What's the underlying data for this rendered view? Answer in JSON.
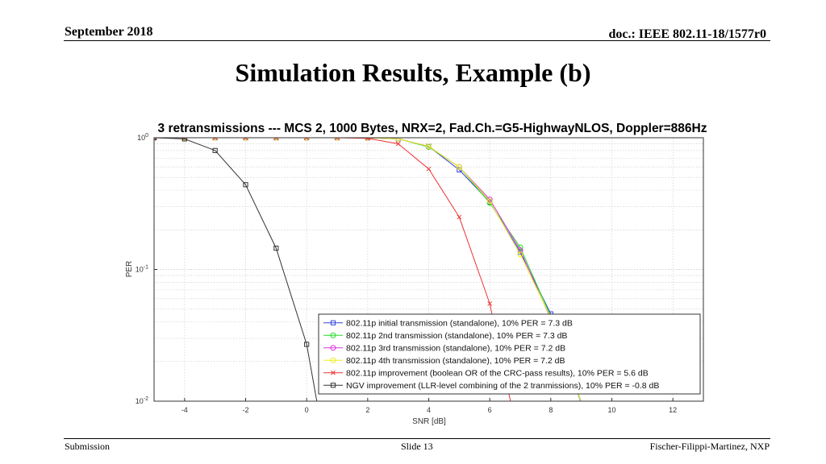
{
  "header": {
    "date": "September 2018",
    "doc_id": "doc.: IEEE 802.11-18/1577r0"
  },
  "slide": {
    "title": "Simulation Results, Example (b)"
  },
  "footer": {
    "left": "Submission",
    "center": "Slide 13",
    "right": "Fischer-Filippi-Martinez, NXP"
  },
  "chart_data": {
    "type": "line",
    "title": "3 retransmissions --- MCS 2, 1000 Bytes, NRX=2, Fad.Ch.=G5-HighwayNLOS, Doppler=886Hz",
    "xlabel": "SNR [dB]",
    "ylabel": "PER",
    "xlim": [
      -5,
      13
    ],
    "ylim": [
      0.01,
      1
    ],
    "y_scale": "log",
    "grid": true,
    "legend_position": "bottom-right",
    "x_ticks": [
      -4,
      -2,
      0,
      2,
      4,
      6,
      8,
      10,
      12
    ],
    "y_ticks": [
      {
        "value": 1,
        "base": "10",
        "exp": "0"
      },
      {
        "value": 0.1,
        "base": "10",
        "exp": "-1"
      },
      {
        "value": 0.01,
        "base": "10",
        "exp": "-2"
      }
    ],
    "series": [
      {
        "name": "802.11p initial transmission (standalone), 10% PER = 7.3 dB",
        "color": "#3344dd",
        "marker": "square",
        "x": [
          -5,
          -4,
          -3,
          -2,
          -1,
          0,
          1,
          2,
          3,
          4,
          5,
          6,
          7,
          8,
          9
        ],
        "y": [
          1,
          1,
          1,
          1,
          1,
          1,
          1,
          1,
          0.98,
          0.86,
          0.57,
          0.325,
          0.135,
          0.046,
          0.0095
        ]
      },
      {
        "name": "802.11p 2nd transmission (standalone), 10% PER = 7.3 dB",
        "color": "#22dd22",
        "marker": "circle",
        "x": [
          -5,
          -4,
          -3,
          -2,
          -1,
          0,
          1,
          2,
          3,
          4,
          5,
          6,
          7,
          8,
          9
        ],
        "y": [
          1,
          1,
          1,
          1,
          1,
          1,
          1,
          1,
          0.98,
          0.85,
          0.6,
          0.32,
          0.147,
          0.044,
          0.0098
        ]
      },
      {
        "name": "802.11p 3rd transmission (standalone), 10% PER = 7.2 dB",
        "color": "#dd33dd",
        "marker": "circle",
        "x": [
          -5,
          -4,
          -3,
          -2,
          -1,
          0,
          1,
          2,
          3,
          4,
          5,
          6,
          7,
          8,
          9
        ],
        "y": [
          1,
          1,
          1,
          1,
          1,
          1,
          1,
          1,
          0.98,
          0.86,
          0.6,
          0.34,
          0.14,
          0.042,
          0.0097
        ]
      },
      {
        "name": "802.11p 4th transmission (standalone), 10% PER = 7.2 dB",
        "color": "#eeee22",
        "marker": "circle",
        "x": [
          -5,
          -4,
          -3,
          -2,
          -1,
          0,
          1,
          2,
          3,
          4,
          5,
          6,
          7,
          8,
          9
        ],
        "y": [
          1,
          1,
          1,
          1,
          1,
          1,
          1,
          1,
          0.98,
          0.86,
          0.6,
          0.33,
          0.13,
          0.043,
          0.0097
        ]
      },
      {
        "name": "802.11p improvement (boolean OR of the CRC-pass results), 10% PER = 5.6 dB",
        "color": "#ee3333",
        "marker": "x",
        "x": [
          -5,
          -4,
          -3,
          -2,
          -1,
          0,
          1,
          2,
          3,
          4,
          5,
          6,
          6.7
        ],
        "y": [
          1,
          1,
          1,
          1,
          1,
          1,
          1,
          0.99,
          0.9,
          0.58,
          0.25,
          0.055,
          0.0095
        ]
      },
      {
        "name": "NGV improvement (LLR-level combining of the 2 tranmissions), 10% PER = -0.8 dB",
        "color": "#333333",
        "marker": "square",
        "x": [
          -5,
          -4,
          -3,
          -2,
          -1,
          0,
          0.35
        ],
        "y": [
          1,
          0.98,
          0.8,
          0.44,
          0.145,
          0.027,
          0.0095
        ]
      }
    ]
  }
}
